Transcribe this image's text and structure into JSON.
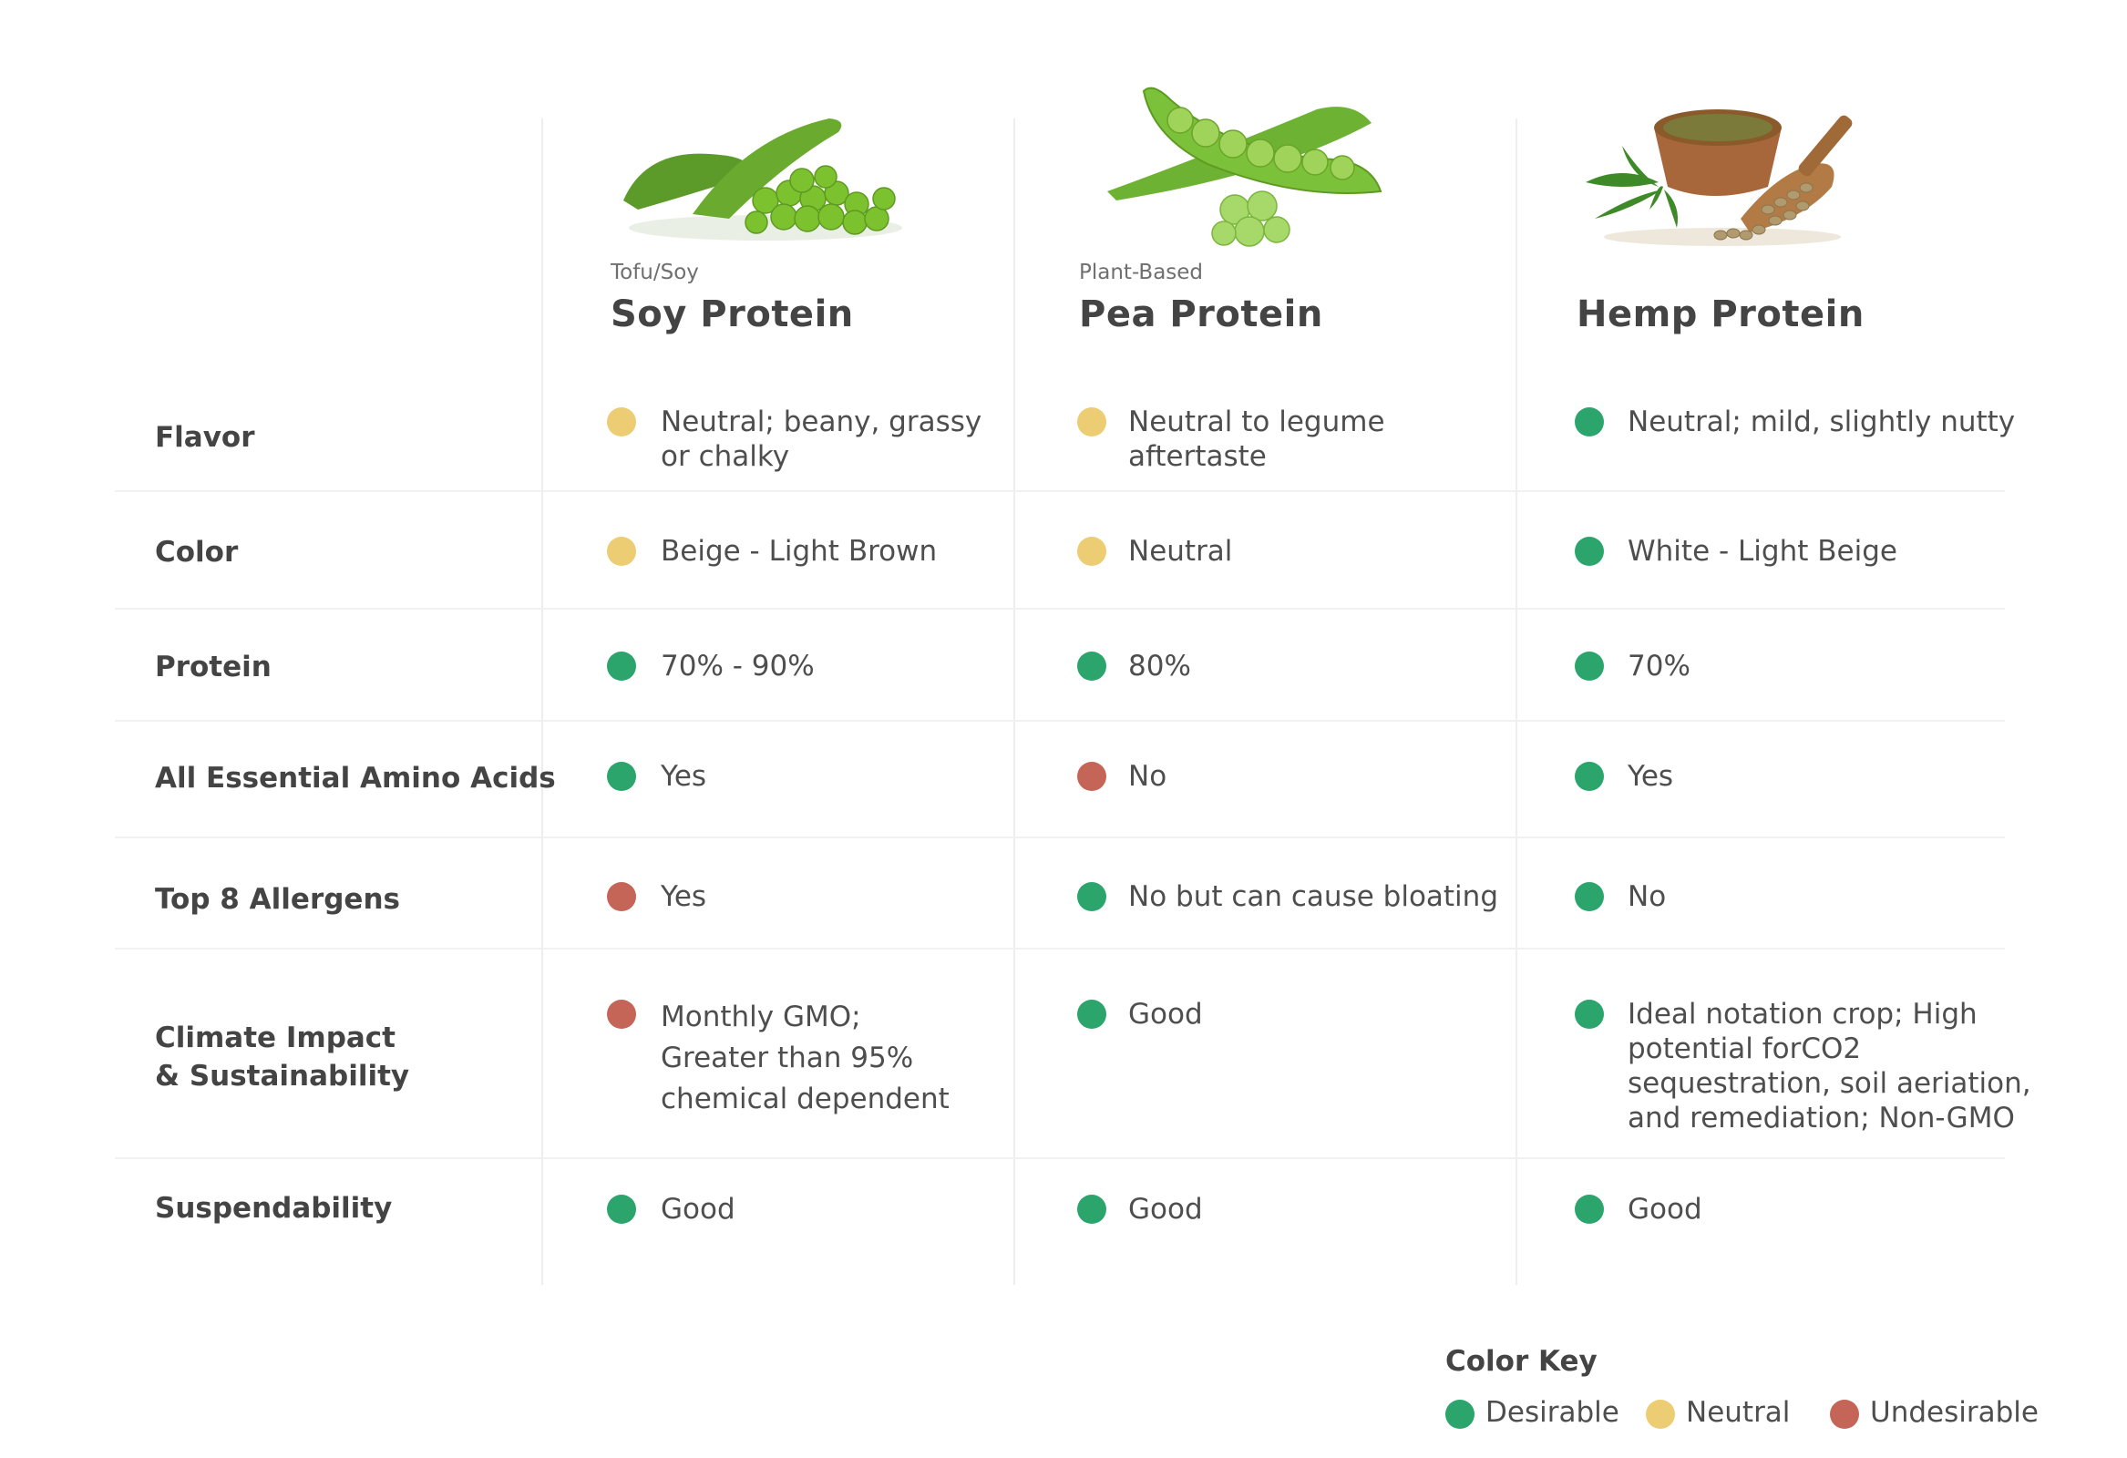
{
  "columns": [
    {
      "subtitle": "Tofu/Soy",
      "title": "Soy Protein",
      "image_icon": "soybean-pods-icon"
    },
    {
      "subtitle": "Plant-Based",
      "title": "Pea Protein",
      "image_icon": "pea-pods-icon"
    },
    {
      "subtitle": "",
      "title": "Hemp Protein",
      "image_icon": "hemp-seeds-bowl-icon"
    }
  ],
  "rows": [
    {
      "label": "Flavor",
      "cells": [
        {
          "text": "Neutral; beany, grassy\nor chalky",
          "rating": "neutral"
        },
        {
          "text": "Neutral to legume\naftertaste",
          "rating": "neutral"
        },
        {
          "text": "Neutral; mild, slightly nutty",
          "rating": "desirable"
        }
      ]
    },
    {
      "label": "Color",
      "cells": [
        {
          "text": "Beige - Light Brown",
          "rating": "neutral"
        },
        {
          "text": "Neutral",
          "rating": "neutral"
        },
        {
          "text": "White - Light Beige",
          "rating": "desirable"
        }
      ]
    },
    {
      "label": "Protein",
      "cells": [
        {
          "text": "70% - 90%",
          "rating": "desirable"
        },
        {
          "text": "80%",
          "rating": "desirable"
        },
        {
          "text": "70%",
          "rating": "desirable"
        }
      ]
    },
    {
      "label": "All Essential Amino Acids",
      "cells": [
        {
          "text": "Yes",
          "rating": "desirable"
        },
        {
          "text": "No",
          "rating": "undesirable"
        },
        {
          "text": "Yes",
          "rating": "desirable"
        }
      ]
    },
    {
      "label": "Top 8 Allergens",
      "cells": [
        {
          "text": "Yes",
          "rating": "undesirable"
        },
        {
          "text": "No but can cause bloating",
          "rating": "desirable"
        },
        {
          "text": "No",
          "rating": "desirable"
        }
      ]
    },
    {
      "label": "Climate Impact\n& Sustainability",
      "cells": [
        {
          "text": "Monthly GMO;\nGreater than 95%\nchemical dependent",
          "rating": "undesirable"
        },
        {
          "text": "Good",
          "rating": "desirable"
        },
        {
          "text": "Ideal notation crop; High\npotential forCO2\nsequestration, soil aeriation,\nand remediation; Non-GMO",
          "rating": "desirable"
        }
      ]
    },
    {
      "label": "Suspendability",
      "cells": [
        {
          "text": "Good",
          "rating": "desirable"
        },
        {
          "text": "Good",
          "rating": "desirable"
        },
        {
          "text": "Good",
          "rating": "desirable"
        }
      ]
    }
  ],
  "color_key": {
    "title": "Color Key",
    "items": [
      {
        "label": "Desirable",
        "rating": "desirable",
        "color": "#2ba56b"
      },
      {
        "label": "Neutral",
        "rating": "neutral",
        "color": "#eccd74"
      },
      {
        "label": "Undesirable",
        "rating": "undesirable",
        "color": "#c46557"
      }
    ]
  }
}
